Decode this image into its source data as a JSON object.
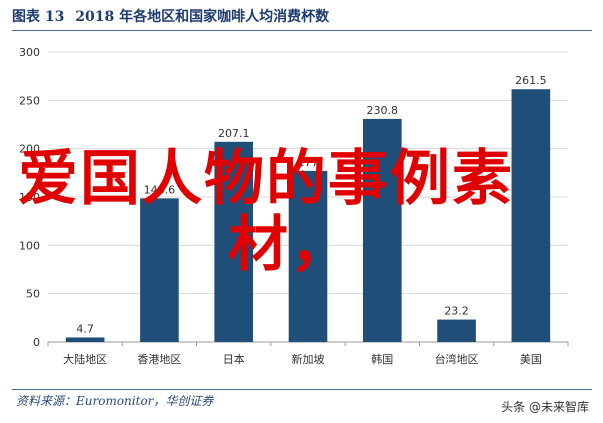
{
  "header": {
    "label": "图表 13",
    "title": "2018 年各地区和国家咖啡人均消费杯数"
  },
  "footer": {
    "source": "资料来源：Euromonitor，华创证券",
    "brand": "头条 @未来智库"
  },
  "overlay": {
    "line1": "爱国人物的事例素",
    "line2": "材，"
  },
  "colors": {
    "bar": "#1f4e79",
    "grid": "#d9d9d9",
    "axis_text": "#333333",
    "overlay": "#e00000"
  },
  "chart_data": {
    "type": "bar",
    "categories": [
      "大陆地区",
      "香港地区",
      "日本",
      "新加坡",
      "韩国",
      "台湾地区",
      "美国"
    ],
    "values": [
      4.7,
      148.6,
      207.1,
      177,
      230.8,
      23.2,
      261.5
    ],
    "data_labels": [
      "4.7",
      "148.6",
      "207.1",
      "177",
      "230.8",
      "23.2",
      "261.5"
    ],
    "yticks": [
      0,
      50,
      100,
      150,
      200,
      250,
      300
    ],
    "ylim": [
      0,
      300
    ],
    "grid": true
  }
}
